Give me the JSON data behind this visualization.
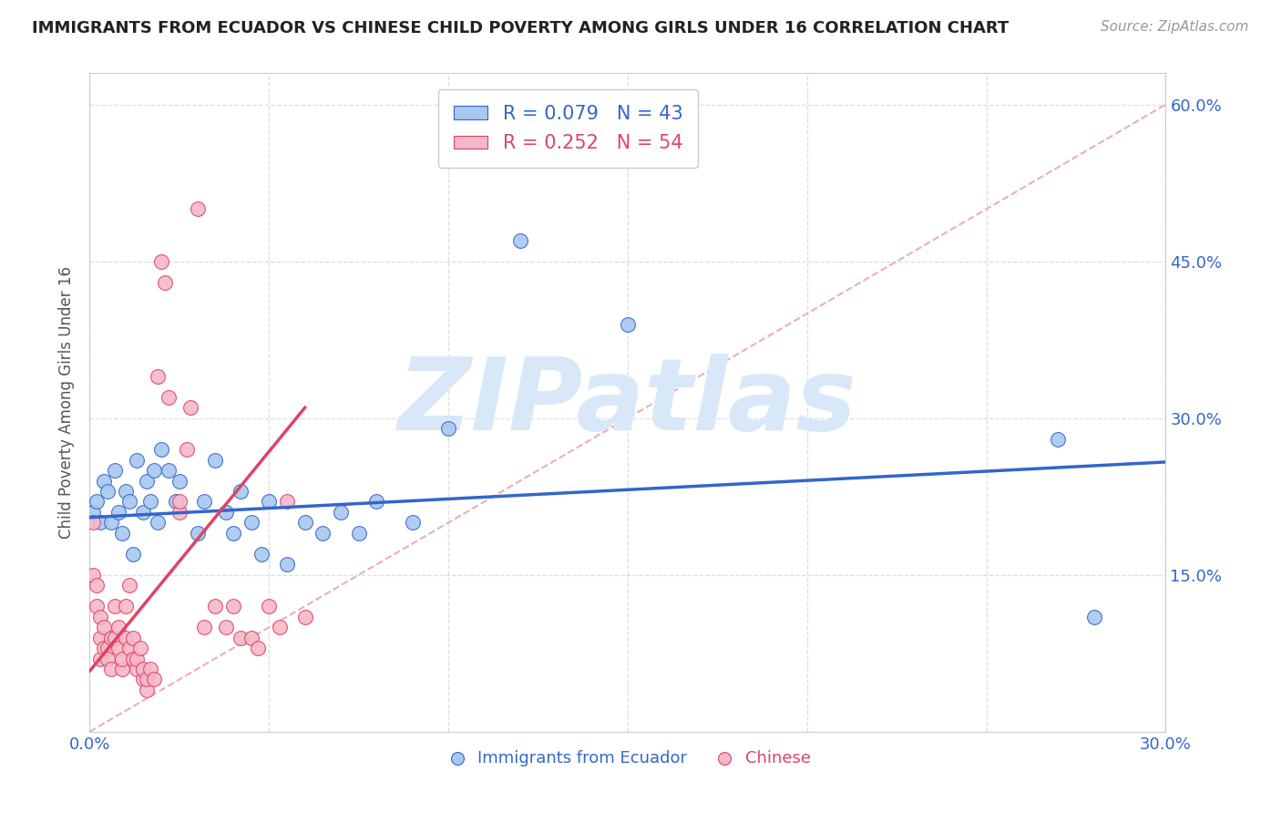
{
  "title": "IMMIGRANTS FROM ECUADOR VS CHINESE CHILD POVERTY AMONG GIRLS UNDER 16 CORRELATION CHART",
  "source": "Source: ZipAtlas.com",
  "ylabel": "Child Poverty Among Girls Under 16",
  "xlim": [
    0.0,
    0.3
  ],
  "ylim": [
    0.0,
    0.63
  ],
  "blue_color": "#a8c8f0",
  "pink_color": "#f5b8c8",
  "blue_line_color": "#3366cc",
  "pink_line_color": "#dd4466",
  "ref_line_color": "#e8b0bb",
  "watermark": "ZIPatlas",
  "watermark_color": "#d8e8f8",
  "grid_color": "#dddddd",
  "R_blue": 0.079,
  "N_blue": 43,
  "R_pink": 0.252,
  "N_pink": 54,
  "blue_scatter_x": [
    0.001,
    0.002,
    0.003,
    0.004,
    0.005,
    0.006,
    0.007,
    0.008,
    0.009,
    0.01,
    0.011,
    0.012,
    0.013,
    0.015,
    0.016,
    0.017,
    0.018,
    0.019,
    0.02,
    0.022,
    0.024,
    0.025,
    0.03,
    0.032,
    0.035,
    0.038,
    0.04,
    0.042,
    0.045,
    0.048,
    0.05,
    0.055,
    0.06,
    0.065,
    0.07,
    0.075,
    0.08,
    0.09,
    0.1,
    0.12,
    0.15,
    0.27,
    0.28
  ],
  "blue_scatter_y": [
    0.21,
    0.22,
    0.2,
    0.24,
    0.23,
    0.2,
    0.25,
    0.21,
    0.19,
    0.23,
    0.22,
    0.17,
    0.26,
    0.21,
    0.24,
    0.22,
    0.25,
    0.2,
    0.27,
    0.25,
    0.22,
    0.24,
    0.19,
    0.22,
    0.26,
    0.21,
    0.19,
    0.23,
    0.2,
    0.17,
    0.22,
    0.16,
    0.2,
    0.19,
    0.21,
    0.19,
    0.22,
    0.2,
    0.29,
    0.47,
    0.39,
    0.28,
    0.11
  ],
  "pink_scatter_x": [
    0.001,
    0.001,
    0.002,
    0.002,
    0.003,
    0.003,
    0.003,
    0.004,
    0.004,
    0.005,
    0.005,
    0.006,
    0.006,
    0.007,
    0.007,
    0.008,
    0.008,
    0.009,
    0.009,
    0.01,
    0.01,
    0.011,
    0.011,
    0.012,
    0.012,
    0.013,
    0.013,
    0.014,
    0.015,
    0.015,
    0.016,
    0.016,
    0.017,
    0.018,
    0.019,
    0.02,
    0.021,
    0.022,
    0.025,
    0.025,
    0.027,
    0.028,
    0.03,
    0.032,
    0.035,
    0.038,
    0.04,
    0.042,
    0.045,
    0.047,
    0.05,
    0.053,
    0.055,
    0.06
  ],
  "pink_scatter_y": [
    0.2,
    0.15,
    0.12,
    0.14,
    0.09,
    0.11,
    0.07,
    0.08,
    0.1,
    0.08,
    0.07,
    0.09,
    0.06,
    0.09,
    0.12,
    0.08,
    0.1,
    0.06,
    0.07,
    0.09,
    0.12,
    0.08,
    0.14,
    0.07,
    0.09,
    0.06,
    0.07,
    0.08,
    0.05,
    0.06,
    0.04,
    0.05,
    0.06,
    0.05,
    0.34,
    0.45,
    0.43,
    0.32,
    0.21,
    0.22,
    0.27,
    0.31,
    0.5,
    0.1,
    0.12,
    0.1,
    0.12,
    0.09,
    0.09,
    0.08,
    0.12,
    0.1,
    0.22,
    0.11
  ],
  "blue_line_x0": 0.0,
  "blue_line_y0": 0.205,
  "blue_line_x1": 0.3,
  "blue_line_y1": 0.258,
  "pink_line_x0": 0.0,
  "pink_line_y0": 0.058,
  "pink_line_x1": 0.06,
  "pink_line_y1": 0.31,
  "legend_labels": [
    "Immigrants from Ecuador",
    "Chinese"
  ]
}
